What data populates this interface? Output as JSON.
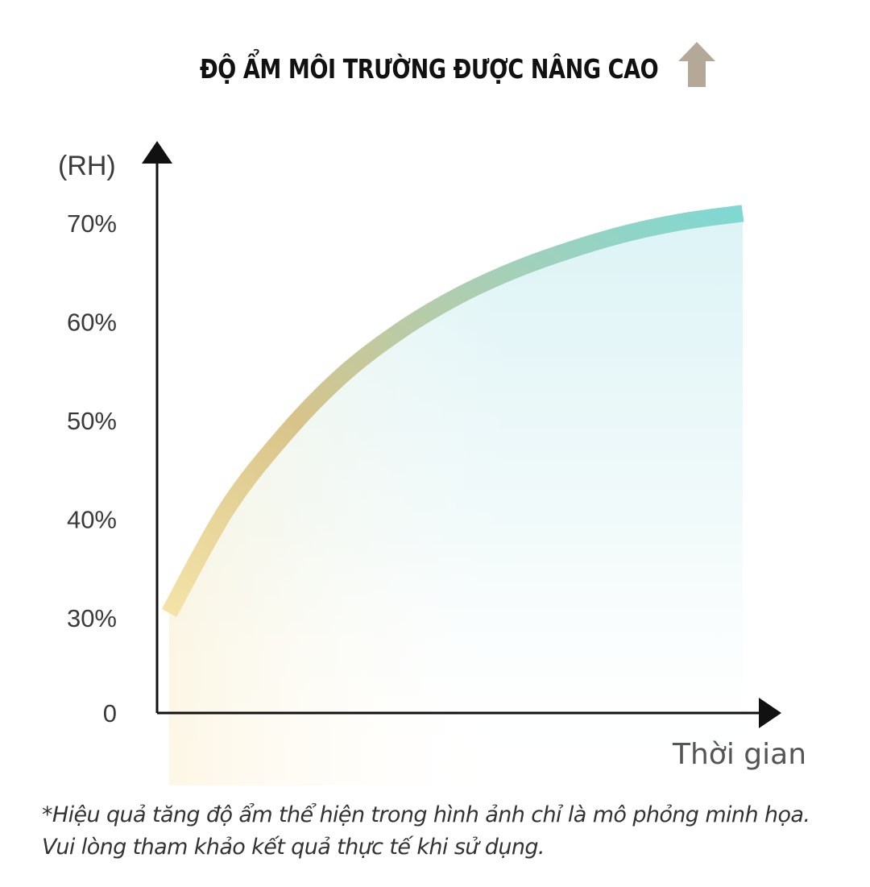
{
  "title": "ĐỘ ẨM MÔI TRƯỜNG ĐƯỢC NÂNG CAO",
  "title_arrow_icon": "up-arrow-icon",
  "colors": {
    "arrow": "#b4a898",
    "curve_start": "#f4e3a6",
    "curve_mid": "#d9c58c",
    "curve_end": "#7fd8d3",
    "axis": "#111111"
  },
  "chart_data": {
    "type": "line",
    "ylabel": "(RH)",
    "xlabel": "Thời gian",
    "y_ticks": [
      "0",
      "30%",
      "40%",
      "50%",
      "60%",
      "70%"
    ],
    "series": [
      {
        "values": [
          {
            "t": 0.0,
            "rh": 30.5
          },
          {
            "t": 0.1,
            "rh": 41.0
          },
          {
            "t": 0.2,
            "rh": 48.5
          },
          {
            "t": 0.3,
            "rh": 54.5
          },
          {
            "t": 0.4,
            "rh": 59.0
          },
          {
            "t": 0.5,
            "rh": 62.5
          },
          {
            "t": 0.6,
            "rh": 65.2
          },
          {
            "t": 0.7,
            "rh": 67.3
          },
          {
            "t": 0.8,
            "rh": 69.0
          },
          {
            "t": 0.9,
            "rh": 70.2
          },
          {
            "t": 1.0,
            "rh": 71.0
          }
        ]
      }
    ],
    "grid": false,
    "legend": "none"
  },
  "footnote": "*Hiệu quả tăng độ ẩm thể hiện trong hình ảnh chỉ là mô phỏng minh họa. Vui lòng tham khảo kết quả thực tế khi sử dụng."
}
